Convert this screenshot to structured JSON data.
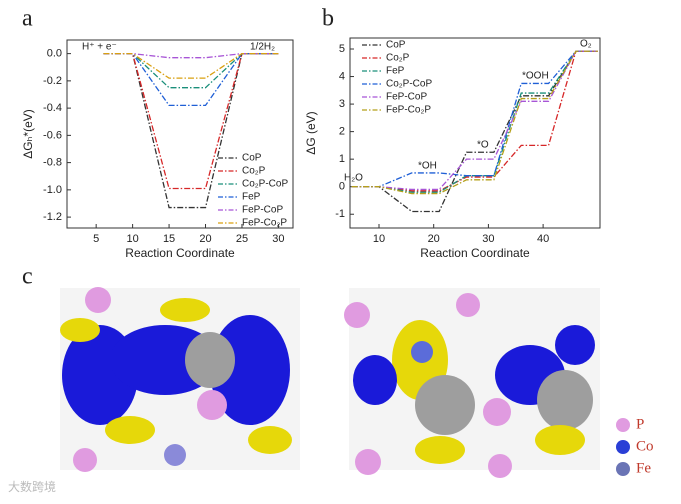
{
  "chart_data": [
    {
      "type": "line",
      "y_label": "ΔGₕ*(eV)",
      "x_label": "Reaction Coordinate",
      "x": [
        6,
        10,
        15,
        20,
        25,
        30
      ],
      "xlim": [
        1,
        32
      ],
      "xticks": [
        5,
        10,
        15,
        20,
        25,
        30
      ],
      "ylim": [
        -1.28,
        0.1
      ],
      "yticks": [
        {
          "value": 0,
          "label": "0.0"
        },
        {
          "value": -0.2,
          "label": "-0.2"
        },
        {
          "value": -0.4,
          "label": "-0.4"
        },
        {
          "value": -0.6,
          "label": "-0.6"
        },
        {
          "value": -0.8,
          "label": "-0.8"
        },
        {
          "value": -1.0,
          "label": "-1.0"
        },
        {
          "value": -1.2,
          "label": "-1.2"
        }
      ],
      "legend": "lower right",
      "annotations": [
        "H⁺ + e⁻",
        "1/2H₂"
      ],
      "series": [
        {
          "name": "CoP",
          "color": "#333333",
          "values": [
            0,
            0,
            -1.13,
            -1.13,
            0,
            0
          ]
        },
        {
          "name": "Co₂P",
          "color": "#d62728",
          "values": [
            0,
            0,
            -0.99,
            -0.99,
            0,
            0
          ]
        },
        {
          "name": "Co₂P-CoP",
          "color": "#1a8f7a",
          "values": [
            0,
            0,
            -0.25,
            -0.25,
            0,
            0
          ]
        },
        {
          "name": "FeP",
          "color": "#1f5fd6",
          "values": [
            0,
            0,
            -0.38,
            -0.38,
            0,
            0
          ]
        },
        {
          "name": "FeP-CoP",
          "color": "#a855d6",
          "values": [
            0,
            0,
            -0.03,
            -0.03,
            0,
            0
          ]
        },
        {
          "name": "FeP-Co₂P",
          "color": "#d9a011",
          "values": [
            0,
            0,
            -0.18,
            -0.18,
            0,
            0
          ]
        }
      ]
    },
    {
      "type": "line",
      "y_label": "ΔG (eV)",
      "x_label": "Reaction Coordinate",
      "x": [
        5,
        10,
        16,
        21,
        26,
        31,
        36,
        41,
        46,
        50
      ],
      "xlim": [
        4.7,
        50.4
      ],
      "xticks": [
        10,
        20,
        30,
        40
      ],
      "ylim": [
        -1.5,
        5.4
      ],
      "yticks": [
        -1,
        0,
        1,
        2,
        3,
        4,
        5
      ],
      "legend": "upper left",
      "annotations": [
        "H₂O",
        "*OH",
        "*O",
        "*OOH",
        "O₂"
      ],
      "series": [
        {
          "name": "CoP",
          "color": "#333333",
          "values": [
            0,
            0,
            -0.9,
            -0.9,
            1.25,
            1.25,
            3.3,
            3.3,
            4.92,
            4.92
          ]
        },
        {
          "name": "Co₂P",
          "color": "#d62728",
          "values": [
            0,
            0,
            -0.15,
            -0.15,
            0.35,
            0.35,
            1.5,
            1.5,
            4.92,
            4.92
          ]
        },
        {
          "name": "FeP",
          "color": "#1a8f7a",
          "values": [
            0,
            0,
            -0.2,
            -0.2,
            0.4,
            0.4,
            3.4,
            3.4,
            4.92,
            4.92
          ]
        },
        {
          "name": "Co₂P-CoP",
          "color": "#1f5fd6",
          "values": [
            0,
            0,
            0.5,
            0.5,
            0.4,
            0.4,
            3.75,
            3.75,
            4.92,
            4.92
          ]
        },
        {
          "name": "FeP-CoP",
          "color": "#a855d6",
          "values": [
            0,
            0,
            -0.1,
            -0.1,
            1.0,
            1.0,
            3.1,
            3.1,
            4.92,
            4.92
          ]
        },
        {
          "name": "FeP-Co₂P",
          "color": "#b5a01a",
          "values": [
            0,
            0,
            -0.25,
            -0.25,
            0.25,
            0.25,
            3.2,
            3.2,
            4.92,
            4.92
          ]
        }
      ]
    }
  ],
  "figure": {
    "labels": [
      "a",
      "b",
      "c"
    ],
    "legend": [
      "P",
      "Co",
      "Fe"
    ],
    "watermark": "大数跨境"
  }
}
